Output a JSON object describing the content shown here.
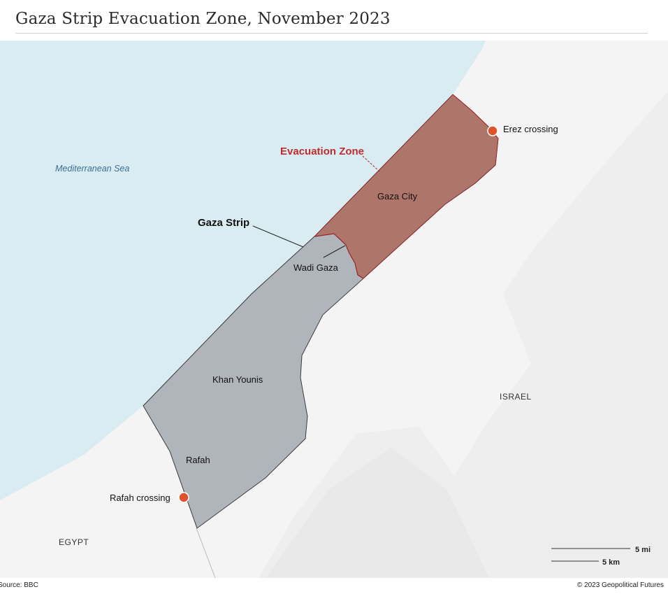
{
  "title": "Gaza Strip Evacuation Zone, November 2023",
  "colors": {
    "sea": "#d8ecf2",
    "land": "#f4f4f4",
    "strip": "#b0b4bb",
    "evacuation_fill": "#ae756b",
    "evacuation_border": "#b3262a",
    "marker": "#e0522b",
    "label_red": "#c02b2f"
  },
  "labels": {
    "sea": "Mediterranean Sea",
    "strip": "Gaza Strip",
    "evacuation_zone": "Evacuation Zone",
    "gaza_city": "Gaza City",
    "wadi_gaza": "Wadi Gaza",
    "khan_younis": "Khan Younis",
    "rafah": "Rafah",
    "israel": "ISRAEL",
    "egypt": "EGYPT"
  },
  "markers": [
    {
      "name": "Erez crossing"
    },
    {
      "name": "Rafah crossing"
    }
  ],
  "scale": {
    "miles": "5 mi",
    "km": "5 km"
  },
  "footer": {
    "source": "Source: BBC",
    "credit": "© 2023 Geopolitical Futures"
  }
}
